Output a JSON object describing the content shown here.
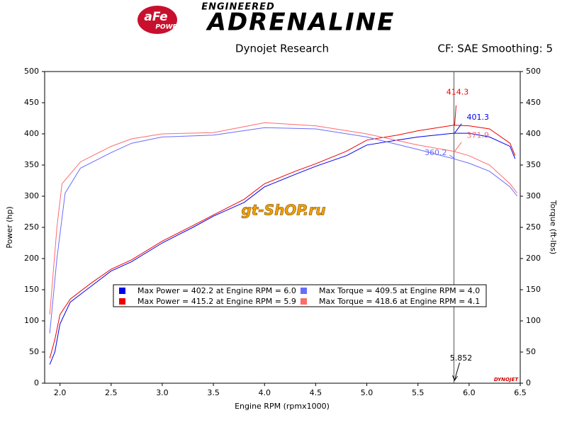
{
  "header": {
    "brand": "aFe",
    "brand_sub": "POWER",
    "logo_top": "ENGINEERED",
    "logo_main": "ADRENALINE"
  },
  "chart_data": {
    "type": "line",
    "title": "Dynojet Research",
    "subtitle": "CF: SAE Smoothing: 5",
    "watermark": "gt-ShOP.ru",
    "footer_logo": "DYNOJET",
    "x_label": "Engine RPM (rpmx1000)",
    "y_label": "Power (hp)",
    "y2_label": "Torque (ft-lbs)",
    "xlim": [
      1.85,
      6.5
    ],
    "xticks": [
      {
        "value": 2,
        "label": "2.0"
      },
      2.5,
      {
        "value": 3,
        "label": "3.0"
      },
      3.5,
      {
        "value": 4,
        "label": "4.0"
      },
      4.5,
      {
        "value": 5,
        "label": "5.0"
      },
      5.5,
      {
        "value": 6,
        "label": "6.0"
      },
      6.5
    ],
    "ylim": [
      0,
      500
    ],
    "yticks": [
      0,
      50,
      100,
      150,
      200,
      250,
      300,
      350,
      400,
      450,
      500
    ],
    "y2lim": [
      0,
      500
    ],
    "y2ticks": [
      0,
      50,
      100,
      150,
      200,
      250,
      300,
      350,
      400,
      450,
      500
    ],
    "cursor_x": 5.852,
    "series": [
      {
        "name": "Max Power = 402.2 at Engine RPM = 6.0",
        "color": "#0000ee",
        "x": [
          1.9,
          1.95,
          2.0,
          2.1,
          2.3,
          2.5,
          2.7,
          3.0,
          3.3,
          3.5,
          3.8,
          4.0,
          4.3,
          4.5,
          4.8,
          5.0,
          5.3,
          5.5,
          5.85,
          6.0,
          6.2,
          6.4,
          6.45
        ],
        "values": [
          30,
          50,
          95,
          130,
          155,
          180,
          195,
          225,
          250,
          268,
          290,
          315,
          335,
          348,
          365,
          382,
          390,
          395,
          401,
          401,
          395,
          380,
          360
        ]
      },
      {
        "name": "Max Power = 415.2 at Engine RPM = 5.9",
        "color": "#ee0000",
        "x": [
          1.9,
          1.95,
          2.0,
          2.1,
          2.3,
          2.5,
          2.7,
          3.0,
          3.3,
          3.5,
          3.8,
          4.0,
          4.3,
          4.5,
          4.8,
          5.0,
          5.3,
          5.5,
          5.85,
          6.0,
          6.2,
          6.4,
          6.45
        ],
        "values": [
          40,
          70,
          110,
          135,
          160,
          183,
          198,
          228,
          253,
          270,
          295,
          320,
          340,
          352,
          372,
          390,
          398,
          405,
          414,
          413,
          408,
          385,
          365
        ]
      },
      {
        "name": "Max Torque = 409.5 at Engine RPM = 4.0",
        "color": "#6a6aff",
        "axis": "y2",
        "x": [
          1.9,
          1.97,
          2.05,
          2.2,
          2.5,
          2.7,
          3.0,
          3.5,
          4.0,
          4.5,
          5.0,
          5.5,
          5.85,
          6.0,
          6.2,
          6.4,
          6.47
        ],
        "values": [
          80,
          200,
          305,
          345,
          370,
          385,
          395,
          398,
          410,
          408,
          395,
          375,
          360,
          353,
          340,
          315,
          300
        ]
      },
      {
        "name": "Max Torque = 418.6 at Engine RPM = 4.1",
        "color": "#ff6a6a",
        "axis": "y2",
        "x": [
          1.9,
          1.97,
          2.02,
          2.2,
          2.5,
          2.7,
          3.0,
          3.5,
          4.0,
          4.5,
          5.0,
          5.5,
          5.85,
          6.0,
          6.2,
          6.4,
          6.47
        ],
        "values": [
          110,
          250,
          320,
          355,
          380,
          392,
          400,
          402,
          418,
          413,
          400,
          382,
          372,
          365,
          350,
          320,
          305
        ]
      }
    ],
    "annotations": [
      {
        "value": 414.3,
        "color": "#ee0000"
      },
      {
        "value": 401.3,
        "color": "#0000ee"
      },
      {
        "value": 360.2,
        "color": "#6a6aff"
      },
      {
        "value": 371.9,
        "color": "#ff6a6a"
      }
    ]
  }
}
